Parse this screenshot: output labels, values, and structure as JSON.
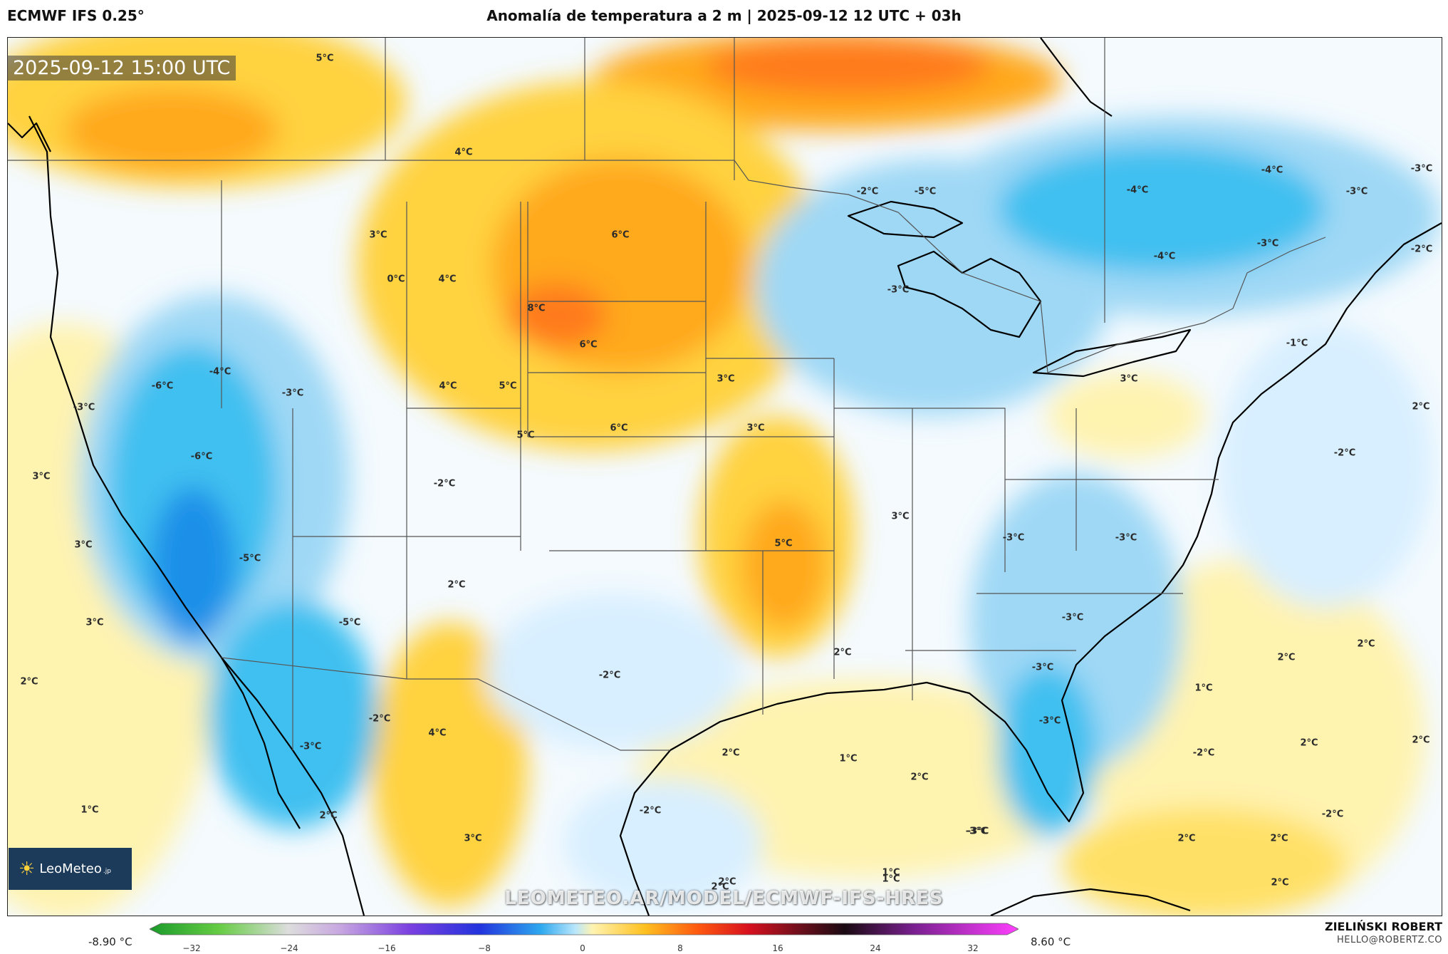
{
  "header": {
    "model": "ECMWF IFS 0.25°",
    "title": "Anomalía de temperatura a 2 m | 2025-09-12 12 UTC + 03h"
  },
  "valid_time": "2025-09-12 15:00 UTC",
  "logo": {
    "name": "LeoMeteo",
    "suffix": ".jp"
  },
  "watermark": "LEOMETEO.AR/MODEL/ECMWF-IFS-HRES",
  "author": {
    "name": "ZIELIŃSKI ROBERT",
    "email": "HELLO@ROBERTZ.CO"
  },
  "legend": {
    "min_label": "-8.90 °C",
    "max_label": "8.60 °C",
    "ticks": [
      "−32",
      "−24",
      "−16",
      "−8",
      "0",
      "8",
      "16",
      "24",
      "32"
    ]
  },
  "colors": {
    "warm_light": "#fff3b0",
    "warm_mid": "#ffd23f",
    "warm_strong": "#ffa91a",
    "warm_hot": "#ff7a1a",
    "cool_light": "#d8efff",
    "cool_mid": "#9fd8f5",
    "cool_strong": "#3fc0f0",
    "cool_deep": "#1e90e8",
    "neutral": "#f7fbff",
    "coastline": "#000000",
    "borders": "#555555"
  },
  "isotherm_labels": [
    "5°C",
    "4°C",
    "3°C",
    "0°C",
    "4°C",
    "6°C",
    "8°C",
    "6°C",
    "4°C",
    "5°C",
    "-6°C",
    "-4°C",
    "-3°C",
    "-3°C",
    "-6°C",
    "3°C",
    "-2°C",
    "5°C",
    "6°C",
    "3°C",
    "3°C",
    "3°C",
    "-5°C",
    "-5°C",
    "2°C",
    "3°C",
    "2°C",
    "-2°C",
    "2°C",
    "-2°C",
    "4°C",
    "-3°C",
    "1°C",
    "2°C",
    "3°C",
    "-2°C",
    "2°C",
    "5°C",
    "2°C",
    "3°C",
    "-3°C",
    "-3°C",
    "-3°C",
    "-3°C",
    "-3°C",
    "1°C",
    "2°C",
    "-3°C",
    "2°C",
    "1°C",
    "-2°C",
    "-5°C",
    "-3°C",
    "-4°C",
    "-4°C",
    "-3°C",
    "-3°C",
    "-4°C",
    "-3°C",
    "-2°C",
    "-1°C",
    "3°C",
    "-2°C",
    "2°C",
    "2°C",
    "1°C",
    "2°C",
    "2°C",
    "-2°C",
    "2°C",
    "2°C",
    "-2°C",
    "2°C",
    "-3°C",
    "2°C",
    "1°C"
  ]
}
